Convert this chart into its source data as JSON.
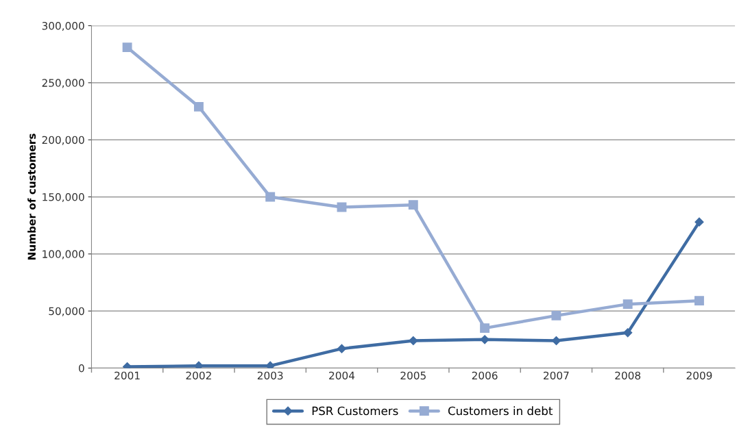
{
  "chart_data": {
    "type": "line",
    "ylabel": "Number of customers",
    "categories": [
      "2001",
      "2002",
      "2003",
      "2004",
      "2005",
      "2006",
      "2007",
      "2008",
      "2009"
    ],
    "series": [
      {
        "name": "PSR Customers",
        "color": "#3f6ca3",
        "marker": "diamond",
        "values": [
          1200,
          2000,
          2000,
          17000,
          24000,
          25000,
          24000,
          31000,
          128000
        ]
      },
      {
        "name": "Customers in debt",
        "color": "#96abd3",
        "marker": "square",
        "values": [
          281000,
          229000,
          150000,
          141000,
          143000,
          35000,
          46000,
          56000,
          59000
        ]
      }
    ],
    "ylim": [
      0,
      300000
    ],
    "yticks": [
      {
        "value": 0,
        "label": "0"
      },
      {
        "value": 50000,
        "label": "50,000"
      },
      {
        "value": 100000,
        "label": "100,000"
      },
      {
        "value": 150000,
        "label": "150,000"
      },
      {
        "value": 200000,
        "label": "200,000"
      },
      {
        "value": 250000,
        "label": "250,000"
      },
      {
        "value": 300000,
        "label": "300,000"
      }
    ],
    "grid": "y",
    "legend": "bottom",
    "line_style": "solid"
  }
}
